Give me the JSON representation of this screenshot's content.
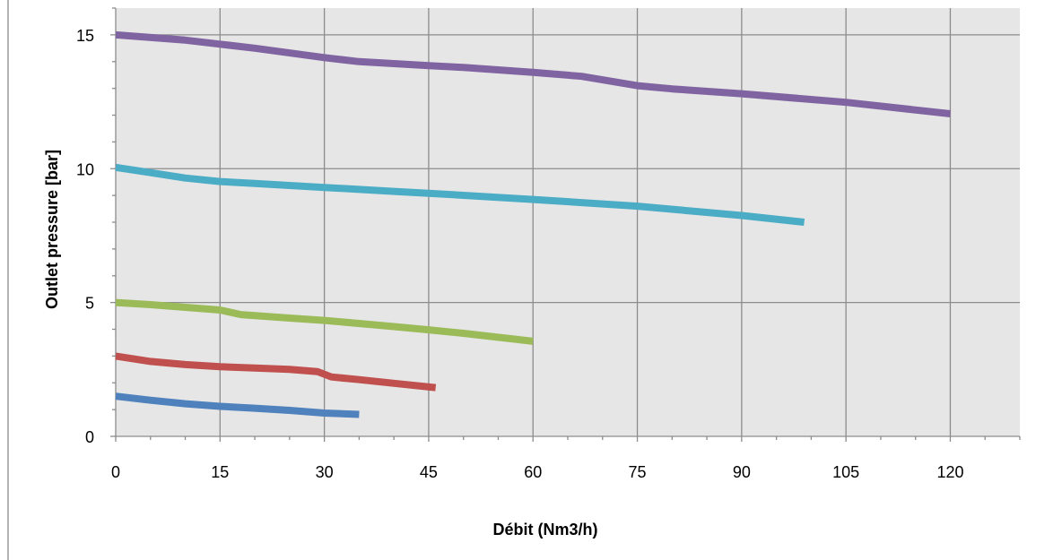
{
  "chart_data": {
    "type": "line",
    "title": "",
    "xlabel": "Débit (Nm3/h)",
    "ylabel": "Outlet pressure  [bar]",
    "xlim": [
      0,
      130
    ],
    "ylim": [
      0,
      16
    ],
    "xticks": [
      0,
      15,
      30,
      45,
      60,
      75,
      90,
      105,
      120
    ],
    "yticks": [
      0,
      5,
      10,
      15
    ],
    "grid": true,
    "plot_background": "#e6e6e6",
    "legend": null,
    "series": [
      {
        "color": "#4f81bd",
        "x": [
          0,
          5,
          10,
          15,
          20,
          25,
          30,
          35
        ],
        "y": [
          1.5,
          1.35,
          1.22,
          1.12,
          1.05,
          0.97,
          0.87,
          0.82
        ]
      },
      {
        "color": "#c0504d",
        "x": [
          0,
          5,
          10,
          15,
          20,
          25,
          29,
          31,
          35,
          40,
          46
        ],
        "y": [
          3.0,
          2.8,
          2.68,
          2.6,
          2.55,
          2.5,
          2.42,
          2.22,
          2.12,
          1.98,
          1.82
        ]
      },
      {
        "color": "#9bbb59",
        "x": [
          0,
          5,
          10,
          15,
          18,
          25,
          30,
          40,
          45,
          50,
          60
        ],
        "y": [
          5.0,
          4.92,
          4.82,
          4.72,
          4.55,
          4.42,
          4.33,
          4.1,
          3.98,
          3.85,
          3.55
        ]
      },
      {
        "color": "#4bacc6",
        "x": [
          0,
          5,
          10,
          15,
          20,
          30,
          40,
          45,
          60,
          75,
          90,
          99
        ],
        "y": [
          10.05,
          9.85,
          9.65,
          9.52,
          9.45,
          9.3,
          9.15,
          9.08,
          8.85,
          8.6,
          8.25,
          8.0
        ]
      },
      {
        "color": "#8064a2",
        "x": [
          0,
          10,
          15,
          20,
          30,
          35,
          45,
          50,
          60,
          67,
          75,
          80,
          90,
          105,
          120
        ],
        "y": [
          15.0,
          14.8,
          14.65,
          14.5,
          14.15,
          14.0,
          13.85,
          13.78,
          13.6,
          13.45,
          13.1,
          12.98,
          12.8,
          12.48,
          12.05
        ]
      }
    ]
  }
}
